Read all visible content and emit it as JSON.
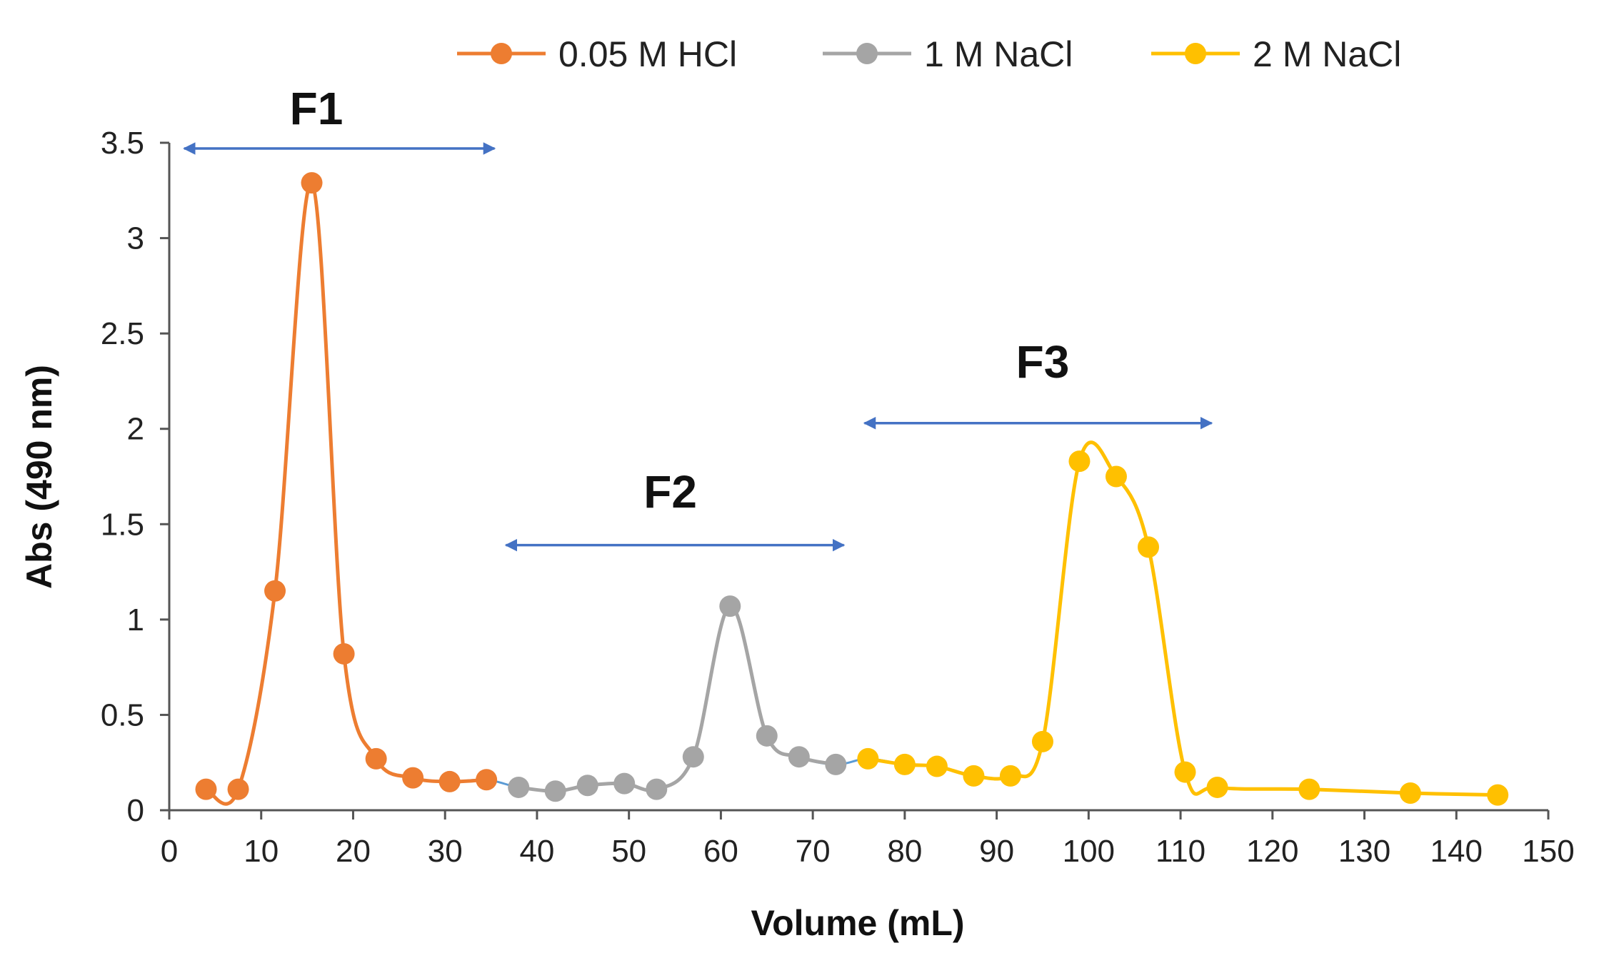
{
  "chart_data": {
    "type": "line",
    "xlabel": "Volume (mL)",
    "ylabel": "Abs (490 nm)",
    "xlim": [
      0,
      150
    ],
    "ylim": [
      0,
      3.5
    ],
    "xticks": [
      "0",
      "10",
      "20",
      "30",
      "40",
      "50",
      "60",
      "70",
      "80",
      "90",
      "100",
      "110",
      "120",
      "130",
      "140",
      "150"
    ],
    "yticks": [
      "0",
      "0.5",
      "1",
      "1.5",
      "2",
      "2.5",
      "3",
      "3.5"
    ],
    "grid": false,
    "legend_position": "top",
    "series": [
      {
        "name": "0.05 M HCl",
        "color": "#ED7D31",
        "x": [
          4,
          7.5,
          11.5,
          15.5,
          19,
          22.5,
          26.5,
          30.5,
          34.5
        ],
        "y": [
          0.11,
          0.11,
          1.15,
          3.29,
          0.82,
          0.27,
          0.17,
          0.15,
          0.16
        ]
      },
      {
        "name": "1 M NaCl",
        "color": "#A5A5A5",
        "x": [
          38,
          42,
          45.5,
          49.5,
          53,
          57,
          61,
          65,
          68.5,
          72.5
        ],
        "y": [
          0.12,
          0.1,
          0.13,
          0.14,
          0.11,
          0.28,
          1.07,
          0.39,
          0.28,
          0.24
        ]
      },
      {
        "name": "2 M NaCl",
        "color": "#FFC000",
        "x": [
          76,
          80,
          83.5,
          87.5,
          91.5,
          95,
          99,
          103,
          106.5,
          110.5,
          114,
          124,
          135,
          144.5
        ],
        "y": [
          0.27,
          0.24,
          0.23,
          0.18,
          0.18,
          0.36,
          1.83,
          1.75,
          1.38,
          0.2,
          0.12,
          0.11,
          0.09,
          0.08
        ]
      }
    ],
    "annotations": [
      {
        "label": "F1",
        "x_start": 1,
        "x_end": 36,
        "y": 3.47,
        "label_x": 16,
        "label_y": 3.68
      },
      {
        "label": "F2",
        "x_start": 36,
        "x_end": 74,
        "y": 1.39,
        "label_x": 54.5,
        "label_y": 1.67
      },
      {
        "label": "F3",
        "x_start": 75,
        "x_end": 114,
        "y": 2.03,
        "label_x": 95,
        "label_y": 2.35
      }
    ],
    "arrow_color": "#4472C4"
  }
}
